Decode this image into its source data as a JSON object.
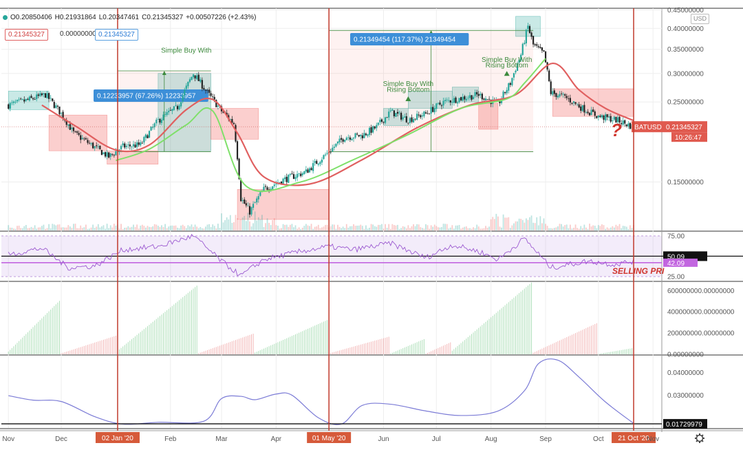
{
  "header": {
    "open": "O0.20850406",
    "high": "H0.21931864",
    "low": "L0.20347461",
    "close": "C0.21345327",
    "change": "+0.00507226 (+2.43%)",
    "price_box_1": "0.21345327",
    "price_box_2": "0.00000000",
    "price_box_3": "0.21345327",
    "currency": "USD"
  },
  "colors": {
    "up": "#26a69a",
    "down": "#ef5350",
    "ma": "#e06060",
    "signal": "#7fe06a",
    "measure_blue": "#3d8fd8",
    "rsi": "#9b59d0",
    "oscillator": "#7b7bd6",
    "marker": "#c0392b"
  },
  "chart_data": [
    {
      "type": "candlestick",
      "symbol": "BATUSD",
      "yaxis_ticks": [
        "0.45000000",
        "0.40000000",
        "0.35000000",
        "0.30000000",
        "0.25000000",
        "0.15000000"
      ],
      "xaxis_ticks": [
        "Nov",
        "Dec",
        "Jan",
        "Feb",
        "Mar",
        "Apr",
        "May",
        "Jun",
        "Jul",
        "Aug",
        "Sep",
        "Oct",
        "Nov"
      ],
      "ylim": [
        0.11,
        0.455
      ],
      "log_scale": true,
      "close_path": [
        {
          "x": "2019-11-01",
          "y": 0.245
        },
        {
          "x": "2019-11-12",
          "y": 0.253
        },
        {
          "x": "2019-11-22",
          "y": 0.262
        },
        {
          "x": "2019-12-01",
          "y": 0.232
        },
        {
          "x": "2019-12-08",
          "y": 0.205
        },
        {
          "x": "2019-12-18",
          "y": 0.19
        },
        {
          "x": "2019-12-28",
          "y": 0.176
        },
        {
          "x": "2020-01-05",
          "y": 0.188
        },
        {
          "x": "2020-01-15",
          "y": 0.19
        },
        {
          "x": "2020-01-25",
          "y": 0.222
        },
        {
          "x": "2020-02-05",
          "y": 0.242
        },
        {
          "x": "2020-02-14",
          "y": 0.3
        },
        {
          "x": "2020-02-22",
          "y": 0.265
        },
        {
          "x": "2020-03-01",
          "y": 0.236
        },
        {
          "x": "2020-03-08",
          "y": 0.218
        },
        {
          "x": "2020-03-12",
          "y": 0.135
        },
        {
          "x": "2020-03-17",
          "y": 0.124
        },
        {
          "x": "2020-03-25",
          "y": 0.143
        },
        {
          "x": "2020-04-05",
          "y": 0.152
        },
        {
          "x": "2020-04-18",
          "y": 0.16
        },
        {
          "x": "2020-04-30",
          "y": 0.18
        },
        {
          "x": "2020-05-10",
          "y": 0.2
        },
        {
          "x": "2020-05-20",
          "y": 0.202
        },
        {
          "x": "2020-05-28",
          "y": 0.213
        },
        {
          "x": "2020-06-05",
          "y": 0.235
        },
        {
          "x": "2020-06-15",
          "y": 0.223
        },
        {
          "x": "2020-06-25",
          "y": 0.232
        },
        {
          "x": "2020-07-05",
          "y": 0.25
        },
        {
          "x": "2020-07-15",
          "y": 0.256
        },
        {
          "x": "2020-07-25",
          "y": 0.262
        },
        {
          "x": "2020-08-05",
          "y": 0.246
        },
        {
          "x": "2020-08-12",
          "y": 0.282
        },
        {
          "x": "2020-08-18",
          "y": 0.338
        },
        {
          "x": "2020-08-22",
          "y": 0.405
        },
        {
          "x": "2020-08-25",
          "y": 0.36
        },
        {
          "x": "2020-08-31",
          "y": 0.34
        },
        {
          "x": "2020-09-04",
          "y": 0.265
        },
        {
          "x": "2020-09-12",
          "y": 0.258
        },
        {
          "x": "2020-09-22",
          "y": 0.24
        },
        {
          "x": "2020-10-01",
          "y": 0.228
        },
        {
          "x": "2020-10-11",
          "y": 0.223
        },
        {
          "x": "2020-10-21",
          "y": 0.213
        }
      ],
      "ma_path": [
        {
          "x": "2019-11-20",
          "y": 0.245
        },
        {
          "x": "2019-12-10",
          "y": 0.213
        },
        {
          "x": "2020-01-01",
          "y": 0.184
        },
        {
          "x": "2020-01-20",
          "y": 0.19
        },
        {
          "x": "2020-02-10",
          "y": 0.238
        },
        {
          "x": "2020-02-25",
          "y": 0.254
        },
        {
          "x": "2020-03-10",
          "y": 0.205
        },
        {
          "x": "2020-03-25",
          "y": 0.155
        },
        {
          "x": "2020-04-20",
          "y": 0.148
        },
        {
          "x": "2020-05-20",
          "y": 0.173
        },
        {
          "x": "2020-06-20",
          "y": 0.212
        },
        {
          "x": "2020-07-20",
          "y": 0.245
        },
        {
          "x": "2020-08-15",
          "y": 0.262
        },
        {
          "x": "2020-09-05",
          "y": 0.32
        },
        {
          "x": "2020-09-20",
          "y": 0.27
        },
        {
          "x": "2020-10-05",
          "y": 0.24
        },
        {
          "x": "2020-10-21",
          "y": 0.222
        }
      ],
      "signal_path": [
        {
          "x": "2020-01-01",
          "y": 0.172
        },
        {
          "x": "2020-01-20",
          "y": 0.185
        },
        {
          "x": "2020-02-10",
          "y": 0.216
        },
        {
          "x": "2020-02-25",
          "y": 0.236
        },
        {
          "x": "2020-03-15",
          "y": 0.146
        },
        {
          "x": "2020-04-15",
          "y": 0.15
        },
        {
          "x": "2020-05-15",
          "y": 0.173
        },
        {
          "x": "2020-06-15",
          "y": 0.203
        },
        {
          "x": "2020-07-15",
          "y": 0.24
        },
        {
          "x": "2020-08-10",
          "y": 0.255
        },
        {
          "x": "2020-08-20",
          "y": 0.282
        },
        {
          "x": "2020-09-01",
          "y": 0.33
        }
      ],
      "current_price_label": "BATUSD",
      "current_price": "0.21345327",
      "countdown": "10:26:47",
      "question_mark": "?",
      "measurements": [
        {
          "label": "0.12233957 (67.26%) 12233957",
          "from": {
            "x": "2020-01-02",
            "y": 0.182
          },
          "to": {
            "x": "2020-02-24",
            "y": 0.305
          }
        },
        {
          "label": "0.21349454 (117.37%) 21349454",
          "from": {
            "x": "2020-05-01",
            "y": 0.182
          },
          "to": {
            "x": "2020-08-25",
            "y": 0.395
          }
        }
      ],
      "annotations": [
        {
          "text": "Simple Buy With",
          "x": "2020-02-10",
          "y": 0.343
        },
        {
          "text": "Simple Buy With",
          "x": "2020-06-15",
          "y": 0.277
        },
        {
          "text": "Rising Bottom",
          "x": "2020-06-15",
          "y": 0.267
        },
        {
          "text": "Simple Buy With",
          "x": "2020-08-10",
          "y": 0.323
        },
        {
          "text": "Rising Bottom",
          "x": "2020-08-10",
          "y": 0.312
        }
      ]
    },
    {
      "type": "line",
      "name": "RSI",
      "yaxis_ticks": [
        "75.00",
        "25.00"
      ],
      "ylim": [
        20,
        80
      ],
      "levels": [
        "50.09",
        "42.09"
      ],
      "overlay_text": "SELLING PRI",
      "path": [
        {
          "x": "2019-11-01",
          "y": 52
        },
        {
          "x": "2019-11-20",
          "y": 60
        },
        {
          "x": "2019-12-05",
          "y": 36
        },
        {
          "x": "2019-12-20",
          "y": 38
        },
        {
          "x": "2020-01-05",
          "y": 58
        },
        {
          "x": "2020-01-25",
          "y": 62
        },
        {
          "x": "2020-02-14",
          "y": 75
        },
        {
          "x": "2020-03-01",
          "y": 44
        },
        {
          "x": "2020-03-12",
          "y": 26
        },
        {
          "x": "2020-03-25",
          "y": 46
        },
        {
          "x": "2020-04-15",
          "y": 56
        },
        {
          "x": "2020-05-01",
          "y": 62
        },
        {
          "x": "2020-05-15",
          "y": 58
        },
        {
          "x": "2020-06-05",
          "y": 66
        },
        {
          "x": "2020-06-25",
          "y": 48
        },
        {
          "x": "2020-07-10",
          "y": 64
        },
        {
          "x": "2020-07-25",
          "y": 56
        },
        {
          "x": "2020-08-05",
          "y": 46
        },
        {
          "x": "2020-08-20",
          "y": 72
        },
        {
          "x": "2020-09-04",
          "y": 36
        },
        {
          "x": "2020-09-25",
          "y": 44
        },
        {
          "x": "2020-10-10",
          "y": 40
        },
        {
          "x": "2020-10-21",
          "y": 44
        }
      ]
    },
    {
      "type": "bar",
      "name": "accumulation",
      "yaxis_ticks": [
        "600000000.00000000",
        "400000000.00000000",
        "200000000.00000000",
        "0.00000000"
      ],
      "ylim": [
        0,
        680000000
      ],
      "ramps": [
        {
          "start": "2019-11-01",
          "end": "2019-12-01",
          "color": "green",
          "peak": 520000000
        },
        {
          "start": "2019-12-01",
          "end": "2020-01-02",
          "color": "red",
          "peak": 180000000
        },
        {
          "start": "2020-01-02",
          "end": "2020-02-17",
          "color": "green",
          "peak": 660000000
        },
        {
          "start": "2020-02-17",
          "end": "2020-03-20",
          "color": "red",
          "peak": 200000000
        },
        {
          "start": "2020-03-20",
          "end": "2020-05-01",
          "color": "green",
          "peak": 330000000
        },
        {
          "start": "2020-05-01",
          "end": "2020-06-05",
          "color": "red",
          "peak": 170000000
        },
        {
          "start": "2020-06-05",
          "end": "2020-06-25",
          "color": "green",
          "peak": 150000000
        },
        {
          "start": "2020-06-25",
          "end": "2020-07-10",
          "color": "red",
          "peak": 120000000
        },
        {
          "start": "2020-07-10",
          "end": "2020-08-25",
          "color": "green",
          "peak": 690000000
        },
        {
          "start": "2020-08-25",
          "end": "2020-10-01",
          "color": "red",
          "peak": 300000000
        },
        {
          "start": "2020-10-01",
          "end": "2020-10-21",
          "color": "green",
          "peak": 60000000
        }
      ]
    },
    {
      "type": "line",
      "name": "oscillator",
      "yaxis_ticks": [
        "0.04000000",
        "0.03000000",
        "0.01729979"
      ],
      "ylim": [
        0.0155,
        0.0475
      ],
      "current_value": "0.01729979",
      "path": [
        {
          "x": "2019-11-01",
          "y": 0.0298
        },
        {
          "x": "2019-11-15",
          "y": 0.0278
        },
        {
          "x": "2019-12-01",
          "y": 0.0272
        },
        {
          "x": "2019-12-20",
          "y": 0.0205
        },
        {
          "x": "2020-01-05",
          "y": 0.0172
        },
        {
          "x": "2020-01-25",
          "y": 0.018
        },
        {
          "x": "2020-02-20",
          "y": 0.0185
        },
        {
          "x": "2020-03-01",
          "y": 0.0285
        },
        {
          "x": "2020-03-12",
          "y": 0.0295
        },
        {
          "x": "2020-03-20",
          "y": 0.028
        },
        {
          "x": "2020-04-01",
          "y": 0.0305
        },
        {
          "x": "2020-04-10",
          "y": 0.03
        },
        {
          "x": "2020-04-25",
          "y": 0.02
        },
        {
          "x": "2020-05-08",
          "y": 0.0172
        },
        {
          "x": "2020-05-20",
          "y": 0.0255
        },
        {
          "x": "2020-06-05",
          "y": 0.026
        },
        {
          "x": "2020-06-25",
          "y": 0.023
        },
        {
          "x": "2020-07-15",
          "y": 0.021
        },
        {
          "x": "2020-08-05",
          "y": 0.023
        },
        {
          "x": "2020-08-20",
          "y": 0.032
        },
        {
          "x": "2020-08-28",
          "y": 0.044
        },
        {
          "x": "2020-09-08",
          "y": 0.0455
        },
        {
          "x": "2020-09-20",
          "y": 0.038
        },
        {
          "x": "2020-10-05",
          "y": 0.027
        },
        {
          "x": "2020-10-21",
          "y": 0.0175
        }
      ]
    }
  ],
  "time_axis": {
    "labels": [
      {
        "text": "Nov",
        "date": "2019-11-01"
      },
      {
        "text": "Dec",
        "date": "2019-12-01"
      },
      {
        "text": "Feb",
        "date": "2020-02-01"
      },
      {
        "text": "Mar",
        "date": "2020-03-01"
      },
      {
        "text": "Apr",
        "date": "2020-04-01"
      },
      {
        "text": "Jun",
        "date": "2020-06-01"
      },
      {
        "text": "Jul",
        "date": "2020-07-01"
      },
      {
        "text": "Aug",
        "date": "2020-08-01"
      },
      {
        "text": "Sep",
        "date": "2020-09-01"
      },
      {
        "text": "Oct",
        "date": "2020-10-01"
      },
      {
        "text": "Nov",
        "date": "2020-11-01"
      }
    ],
    "markers": [
      {
        "text": "02 Jan '20",
        "date": "2020-01-02"
      },
      {
        "text": "01 May '20",
        "date": "2020-05-01"
      },
      {
        "text": "21 Oct '20",
        "date": "2020-10-21"
      }
    ],
    "settings_icon": "gear-icon"
  }
}
